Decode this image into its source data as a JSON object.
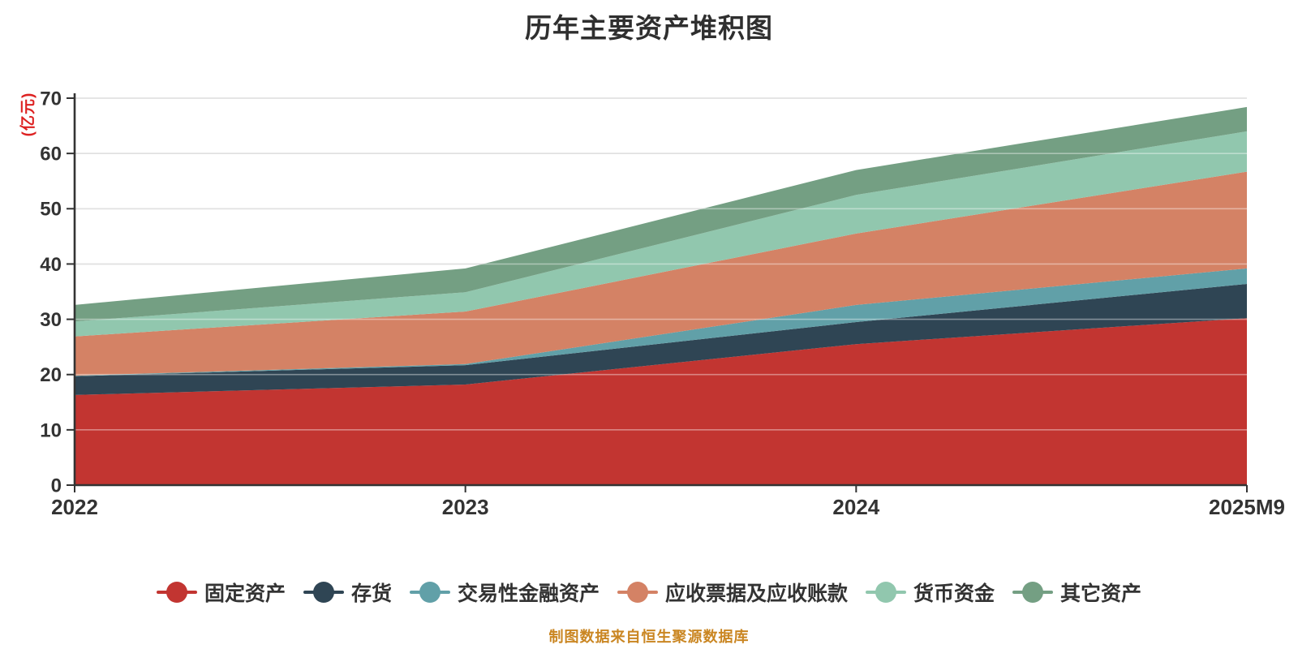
{
  "title": "历年主要资产堆积图",
  "y_axis_name": "(亿元)",
  "footer_note": "制图数据来自恒生聚源数据库",
  "colors": {
    "background": "#ffffff",
    "axis_line": "#333333",
    "tick_label": "#333333",
    "grid_line": "#cccccc",
    "grid_line_overlay": "rgba(255,255,255,0.40)",
    "title_text": "#2f2f2f",
    "y_axis_name_text": "#dd2121",
    "footer_text": "#ca8622",
    "legend_text": "#333333"
  },
  "chart_data": {
    "type": "area",
    "stacked": true,
    "title": "历年主要资产堆积图",
    "xlabel": "",
    "ylabel": "(亿元)",
    "x": [
      "2022",
      "2023",
      "2024",
      "2025M9"
    ],
    "ylim": [
      0,
      70
    ],
    "y_ticks": [
      0,
      10,
      20,
      30,
      40,
      50,
      60,
      70
    ],
    "grid": true,
    "legend_position": "bottom",
    "series": [
      {
        "name": "固定资产",
        "color": "#c23531",
        "values": [
          16.3,
          18.2,
          25.5,
          30.2
        ]
      },
      {
        "name": "存货",
        "color": "#2f4554",
        "values": [
          3.4,
          3.5,
          4.0,
          6.2
        ]
      },
      {
        "name": "交易性金融资产",
        "color": "#61a0a8",
        "values": [
          0.1,
          0.2,
          3.1,
          2.8
        ]
      },
      {
        "name": "应收票据及应收账款",
        "color": "#d48265",
        "values": [
          7.1,
          9.5,
          12.9,
          17.5
        ]
      },
      {
        "name": "货币资金",
        "color": "#91c7ae",
        "values": [
          2.7,
          3.5,
          7.0,
          7.3
        ]
      },
      {
        "name": "其它资产",
        "color": "#749f83",
        "values": [
          3.0,
          4.3,
          4.5,
          4.4
        ]
      }
    ]
  }
}
